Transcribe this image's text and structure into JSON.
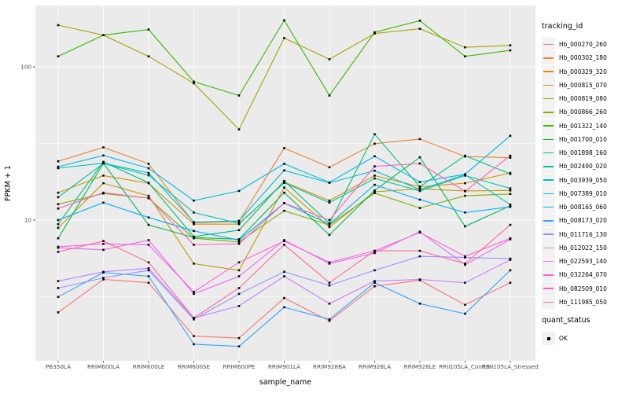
{
  "figure": {
    "xlabel": "sample_name",
    "ylabel": "FPKM + 1",
    "legend_title": "tracking_id",
    "quant_legend_title": "quant_status",
    "quant_legend_item": "OK"
  },
  "theme": {
    "panel_bg": "#EBEBEB",
    "grid_color": "#FFFFFF",
    "axis_text_color": "#4D4D4D",
    "tick_color": "#333333",
    "point_color": "#000000",
    "legend_key_bg": "#F2F2F2"
  },
  "chart_data": {
    "type": "line",
    "x_type": "categorical",
    "yscale": "log10",
    "grid": true,
    "legend_position": "right",
    "title": "",
    "xlabel": "sample_name",
    "ylabel": "FPKM + 1",
    "ylim_log": [
      1.2,
      250
    ],
    "y_major": [
      {
        "value": 100,
        "label": "100"
      },
      {
        "value": 10,
        "label": "10"
      }
    ],
    "y_minor": [
      31.62,
      3.162
    ],
    "categories": [
      "PB350LA",
      "RRIM600LA",
      "RRIM600LE",
      "RRIM600SE",
      "RRIM600PE",
      "RRIM901LA",
      "RRIM928BA",
      "RRIM928LA",
      "RRIM928LE",
      "RRII105LA_Control",
      "RRII105LA_Stressed"
    ],
    "point_shape": "square",
    "series": [
      {
        "name": "Hb_000270_260",
        "color": "#F8766D",
        "values": [
          2.5,
          4.1,
          3.9,
          1.75,
          1.7,
          3.1,
          2.2,
          3.7,
          4.05,
          2.8,
          3.9
        ]
      },
      {
        "name": "Hb_000302_180",
        "color": "#EA8331",
        "values": [
          24.2,
          29.8,
          23.3,
          9.6,
          9.8,
          29.5,
          22.1,
          31.5,
          33.8,
          26.0,
          25.5
        ]
      },
      {
        "name": "Hb_000329_320",
        "color": "#D89000",
        "values": [
          15.1,
          19.5,
          17.4,
          9.4,
          9.4,
          17.7,
          13.4,
          19.5,
          16.5,
          17.4,
          20.3
        ]
      },
      {
        "name": "Hb_000815_070",
        "color": "#C09B00",
        "values": [
          8.9,
          17.4,
          14.4,
          5.2,
          4.7,
          16.3,
          9.0,
          15.3,
          16.0,
          15.5,
          15.6
        ]
      },
      {
        "name": "Hb_000819_080",
        "color": "#A3A500",
        "values": [
          187,
          161,
          117,
          78,
          39,
          154,
          112,
          165,
          177,
          134,
          138
        ]
      },
      {
        "name": "Hb_000866_260",
        "color": "#7CAE00",
        "values": [
          12.7,
          14.9,
          13.9,
          7.6,
          7.2,
          11.5,
          9.3,
          15.0,
          12.0,
          14.4,
          14.8
        ]
      },
      {
        "name": "Hb_001322_140",
        "color": "#39B600",
        "values": [
          117,
          161,
          175,
          80,
          65,
          201,
          65,
          168,
          200,
          117,
          128
        ]
      },
      {
        "name": "Hb_001700_010",
        "color": "#00BB4E",
        "values": [
          7.6,
          23.5,
          9.3,
          7.7,
          7.5,
          15.1,
          8.0,
          15.6,
          25.7,
          9.1,
          12.4
        ]
      },
      {
        "name": "Hb_001898_160",
        "color": "#00BF7D",
        "values": [
          9.4,
          24.0,
          17.5,
          7.8,
          8.6,
          18.0,
          9.5,
          36.3,
          16.5,
          26.3,
          20.0
        ]
      },
      {
        "name": "Hb_002490_020",
        "color": "#00C1A3",
        "values": [
          14.1,
          23.4,
          19.6,
          11.2,
          9.5,
          17.5,
          13.0,
          18.7,
          15.5,
          19.5,
          16.1
        ]
      },
      {
        "name": "Hb_003939_050",
        "color": "#00BFC4",
        "values": [
          21.8,
          23.5,
          20.3,
          9.7,
          9.9,
          21.1,
          17.5,
          21.0,
          15.8,
          19.8,
          12.6
        ]
      },
      {
        "name": "Hb_007389_010",
        "color": "#00BAE0",
        "values": [
          22.3,
          26.4,
          21.8,
          13.4,
          15.5,
          23.3,
          17.6,
          26.1,
          17.7,
          19.9,
          35.5
        ]
      },
      {
        "name": "Hb_008165_060",
        "color": "#00B0F6",
        "values": [
          10.0,
          13.0,
          10.4,
          8.5,
          7.4,
          12.9,
          9.4,
          17.0,
          13.6,
          11.2,
          12.2
        ]
      },
      {
        "name": "Hb_008173_020",
        "color": "#35A2FF",
        "values": [
          3.15,
          4.55,
          4.3,
          1.55,
          1.5,
          2.7,
          2.25,
          3.9,
          2.85,
          2.45,
          4.7
        ]
      },
      {
        "name": "Hb_011716_130",
        "color": "#9590FF",
        "values": [
          3.6,
          4.2,
          4.7,
          2.25,
          3.3,
          4.6,
          3.75,
          4.7,
          5.8,
          5.7,
          5.6
        ]
      },
      {
        "name": "Hb_012022_150",
        "color": "#C77CFF",
        "values": [
          4.0,
          4.6,
          4.85,
          2.3,
          2.75,
          4.3,
          2.85,
          4.0,
          4.1,
          3.9,
          5.5
        ]
      },
      {
        "name": "Hb_022593_140",
        "color": "#E76BF3",
        "values": [
          6.6,
          6.4,
          7.4,
          3.3,
          4.3,
          7.4,
          5.2,
          6.1,
          8.4,
          5.1,
          7.5
        ]
      },
      {
        "name": "Hb_032264_070",
        "color": "#FA62DB",
        "values": [
          6.7,
          7.0,
          6.9,
          3.4,
          5.3,
          7.3,
          5.3,
          6.3,
          8.3,
          5.8,
          7.6
        ]
      },
      {
        "name": "Hb_082509_010",
        "color": "#FF62BC",
        "values": [
          11.9,
          15.1,
          13.9,
          6.9,
          7.0,
          12.9,
          10.0,
          22.4,
          23.4,
          15.4,
          26.3
        ]
      },
      {
        "name": "Hb_111985_050",
        "color": "#FF6A98",
        "values": [
          6.2,
          7.3,
          5.3,
          2.3,
          3.6,
          6.9,
          3.9,
          6.3,
          6.3,
          5.2,
          9.3
        ]
      }
    ],
    "quant_status": {
      "label": "OK",
      "marker": "black-square"
    }
  }
}
